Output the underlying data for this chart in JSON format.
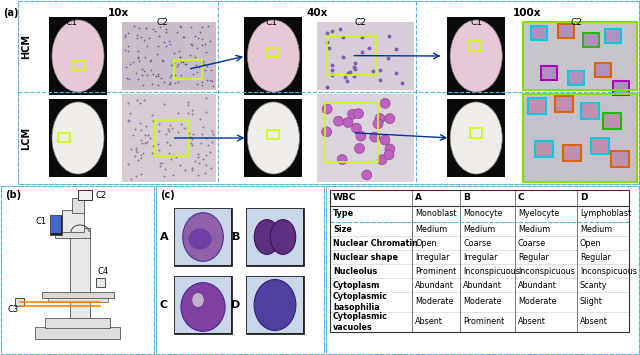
{
  "title_a": "(a)",
  "title_b": "(b)",
  "title_c": "(c)",
  "magnifications": [
    "10x",
    "40x",
    "100x"
  ],
  "row_labels": [
    "HCM",
    "LCM"
  ],
  "table_header": [
    "WBC",
    "A",
    "B",
    "C",
    "D"
  ],
  "table_rows": [
    [
      "Type",
      "Monoblast",
      "Monocyte",
      "Myelocyte",
      "Lymphoblast"
    ],
    [
      "Size",
      "Medium",
      "Medium",
      "Medium",
      "Medium"
    ],
    [
      "Nuclear Chromatin",
      "Open",
      "Coarse",
      "Coarse",
      "Open"
    ],
    [
      "Nuclear shape",
      "Irregular",
      "Irregular",
      "Regular",
      "Regular"
    ],
    [
      "Nucleolus",
      "Prominent",
      "Inconspicuous",
      "Inconspicuous",
      "Inconspicuous"
    ],
    [
      "Cytoplasm",
      "Abundant",
      "Abundant",
      "Abundant",
      "Scanty"
    ],
    [
      "Cytoplasmic\nbasophilia",
      "Moderate",
      "Moderate",
      "Moderate",
      "Slight"
    ],
    [
      "Cytoplasmic\nvacuoles",
      "Absent",
      "Prominent",
      "Absent",
      "Absent"
    ]
  ],
  "cyan_dash": "#4db8e8",
  "yellow_box_color": "#ccff00",
  "arrow_color": "#003399",
  "dark_bg": "#0a0a0a",
  "hcm_oval_color": "#e8c8d8",
  "lcm_oval_color": "#f0ece8",
  "hcm_c2_10x": "#c8bcc8",
  "hcm_c2_40x": "#d8ccd8",
  "lcm_c2_10x": "#d8ccd4",
  "lcm_c2_40x": "#dcd4dc",
  "hcm_c2_100x_bg": "#c8c4cc",
  "lcm_c2_100x_bg": "#c4c0cc",
  "green_outer": "#88dd00",
  "box_cyan": "#00ccdd",
  "box_orange": "#dd6600",
  "box_green": "#22bb00",
  "box_purple": "#aa00bb",
  "cell_bg_blue": "#c8d8e8",
  "cell_purple_a": "#9060a8",
  "cell_purple_b": "#603080",
  "cell_purple_c": "#8040a0",
  "cell_purple_d": "#5040a0",
  "micro_body": "#e8e8e8",
  "micro_dark": "#303030",
  "orange_lines": "#ff8800"
}
